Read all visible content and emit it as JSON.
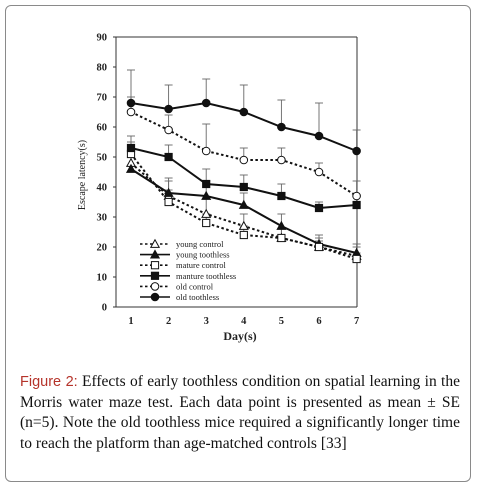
{
  "chart_data": {
    "type": "line",
    "title": "",
    "xlabel": "Day(s)",
    "ylabel": "Escape latency(s)",
    "xlim": [
      1,
      7
    ],
    "ylim": [
      0,
      90
    ],
    "xticks": [
      "1",
      "2",
      "3",
      "4",
      "5",
      "6",
      "7"
    ],
    "yticks": [
      "0",
      "10",
      "20",
      "30",
      "40",
      "50",
      "60",
      "70",
      "80",
      "90"
    ],
    "grid": false,
    "legend_position": "bottom-left",
    "x": [
      1,
      2,
      3,
      4,
      5,
      6,
      7
    ],
    "series": [
      {
        "name": "young control",
        "style": "dotted",
        "marker": "triangle-open",
        "values": [
          48,
          37,
          31,
          27,
          23,
          20,
          17
        ],
        "errors": [
          6,
          5,
          5,
          4,
          3,
          3,
          3
        ]
      },
      {
        "name": "young toothless",
        "style": "solid",
        "marker": "triangle-filled",
        "values": [
          46,
          38,
          37,
          34,
          27,
          21,
          18
        ],
        "errors": [
          5,
          5,
          5,
          4,
          4,
          3,
          3
        ]
      },
      {
        "name": "mature control",
        "style": "dotted",
        "marker": "square-open",
        "values": [
          51,
          35,
          28,
          24,
          23,
          20,
          16
        ],
        "errors": [
          4,
          4,
          3,
          3,
          3,
          2,
          2
        ]
      },
      {
        "name": "manture toothless",
        "style": "solid",
        "marker": "square-filled",
        "values": [
          53,
          50,
          41,
          40,
          37,
          33,
          34
        ],
        "errors": [
          4,
          4,
          5,
          4,
          4,
          2,
          3
        ]
      },
      {
        "name": "old control",
        "style": "dotted",
        "marker": "circle-open",
        "values": [
          65,
          59,
          52,
          49,
          49,
          45,
          37
        ],
        "errors": [
          5,
          5,
          9,
          4,
          4,
          3,
          5
        ]
      },
      {
        "name": "old toothless",
        "style": "solid",
        "marker": "circle-filled",
        "values": [
          68,
          66,
          68,
          65,
          60,
          57,
          52
        ],
        "errors": [
          11,
          8,
          8,
          9,
          9,
          11,
          7
        ]
      }
    ]
  },
  "caption": {
    "label": "Figure 2:",
    "text": " Effects of early toothless condition on spatial learning in the Morris water maze test. Each data point is presented as mean ± SE (n=5). Note the old toothless mice required a significantly longer time to reach the platform than age-matched controls [33]"
  }
}
